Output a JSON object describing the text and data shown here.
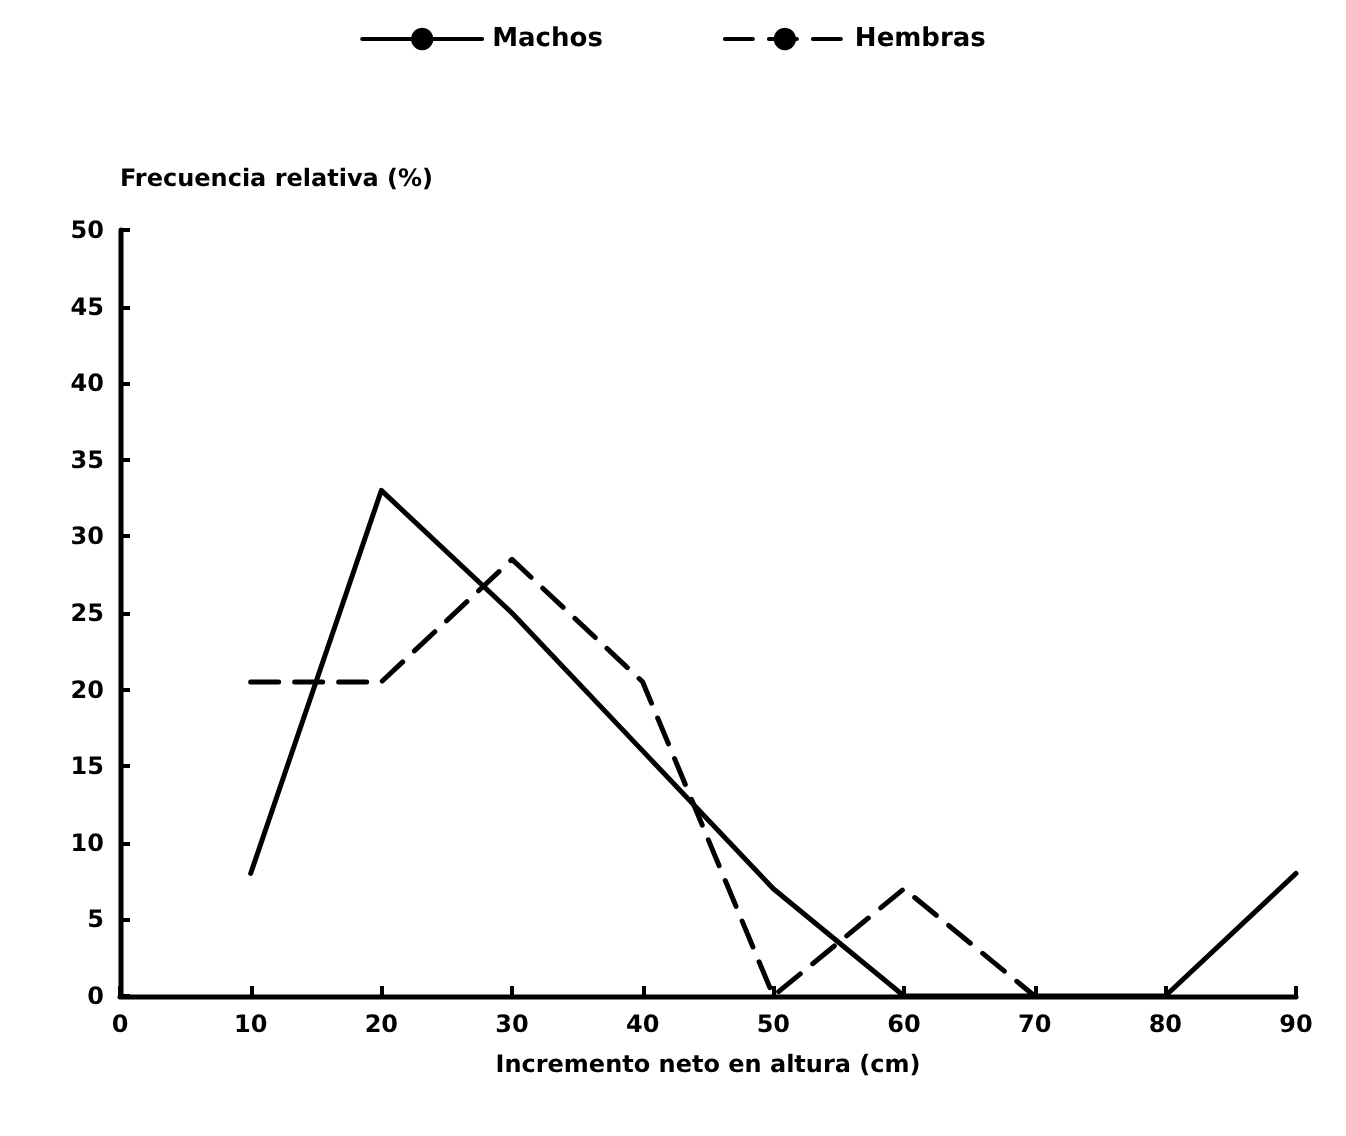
{
  "chart_data": {
    "type": "line",
    "xlabel": "Incremento neto en altura (cm)",
    "ylabel": "Frecuencia relativa (%)",
    "xlim": [
      0,
      90
    ],
    "xticks": [
      0,
      10,
      20,
      30,
      40,
      50,
      60,
      70,
      80,
      90
    ],
    "ylim": [
      0,
      50
    ],
    "yticks": [
      0,
      5,
      10,
      15,
      20,
      25,
      30,
      35,
      40,
      45,
      50
    ],
    "grid": false,
    "legend": "top",
    "marker": "none",
    "series": [
      {
        "name": "Machos",
        "color": "#000000",
        "line_style": "solid",
        "x": [
          10,
          20,
          30,
          40,
          50,
          60,
          70,
          80,
          90
        ],
        "values": [
          8,
          33,
          25,
          16,
          7,
          0,
          0,
          0,
          8
        ]
      },
      {
        "name": "Hembras",
        "color": "#000000",
        "line_style": "dashed",
        "x": [
          10,
          20,
          30,
          40,
          50,
          60,
          70
        ],
        "values": [
          20.5,
          20.5,
          28.5,
          20.5,
          0,
          7,
          0
        ]
      }
    ]
  }
}
